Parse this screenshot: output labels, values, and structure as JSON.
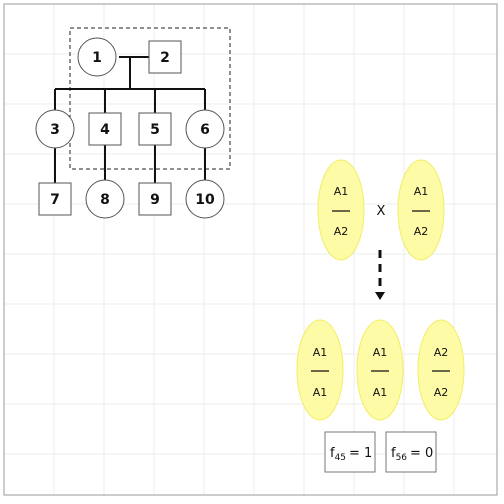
{
  "pedigree": {
    "nodes": [
      {
        "id": "1",
        "label": "1",
        "shape": "circle"
      },
      {
        "id": "2",
        "label": "2",
        "shape": "square"
      },
      {
        "id": "3",
        "label": "3",
        "shape": "circle"
      },
      {
        "id": "4",
        "label": "4",
        "shape": "square"
      },
      {
        "id": "5",
        "label": "5",
        "shape": "square"
      },
      {
        "id": "6",
        "label": "6",
        "shape": "circle"
      },
      {
        "id": "7",
        "label": "7",
        "shape": "square"
      },
      {
        "id": "8",
        "label": "8",
        "shape": "circle"
      },
      {
        "id": "9",
        "label": "9",
        "shape": "square"
      },
      {
        "id": "10",
        "label": "10",
        "shape": "circle"
      }
    ]
  },
  "cross": {
    "symbol": "X",
    "parents": [
      {
        "top": "A1",
        "bottom": "A2"
      },
      {
        "top": "A1",
        "bottom": "A2"
      }
    ],
    "offspring": [
      {
        "top": "A1",
        "bottom": "A1"
      },
      {
        "top": "A1",
        "bottom": "A1"
      },
      {
        "top": "A2",
        "bottom": "A2"
      }
    ]
  },
  "coefficients": [
    {
      "symbol": "f",
      "sub": "45",
      "value": "= 1"
    },
    {
      "symbol": "f",
      "sub": "56",
      "value": "= 0"
    }
  ],
  "colors": {
    "ellipse_fill": "#fdfba6",
    "ellipse_stroke": "#f2ee66",
    "line": "#111111",
    "grid": "#ececec"
  }
}
